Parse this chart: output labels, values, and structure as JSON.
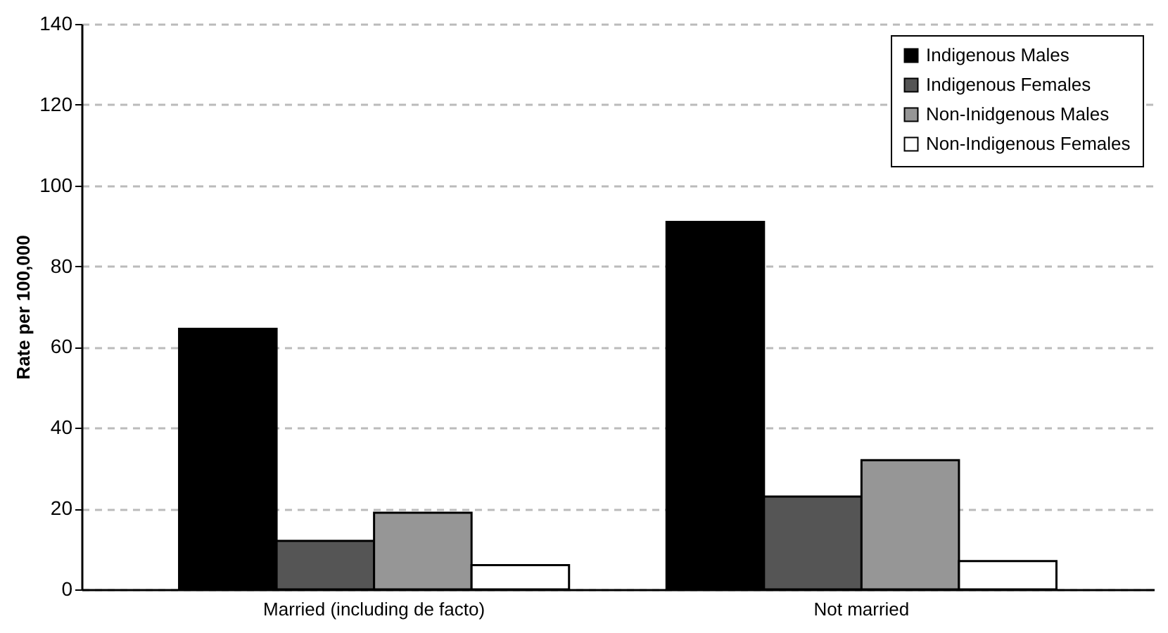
{
  "chart_data": {
    "type": "bar",
    "ylabel": "Rate per 100,000",
    "categories": [
      "Married (including de facto)",
      "Not married"
    ],
    "series": [
      {
        "name": "Indigenous Males",
        "color": "#000000",
        "values": [
          64.5,
          91
        ]
      },
      {
        "name": "Indigenous Females",
        "color": "#555555",
        "values": [
          12,
          23
        ]
      },
      {
        "name": "Non-Inidgenous Males",
        "color": "#969696",
        "values": [
          19,
          32
        ]
      },
      {
        "name": "Non-Indigenous Females",
        "color": "#ffffff",
        "values": [
          6,
          7
        ]
      }
    ],
    "ylim": [
      0,
      140
    ],
    "yticks": [
      0,
      20,
      40,
      60,
      80,
      100,
      120,
      140
    ],
    "grid": "y",
    "legend": "top right"
  }
}
